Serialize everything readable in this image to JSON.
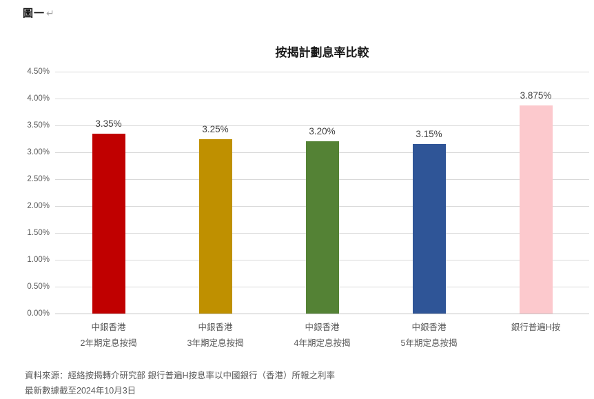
{
  "header": {
    "figure_label": "圖一",
    "return_mark": "↵"
  },
  "chart_data": {
    "type": "bar",
    "title": "按揭計劃息率比較",
    "categories": [
      {
        "line1": "中銀香港",
        "line2": "2年期定息按揭"
      },
      {
        "line1": "中銀香港",
        "line2": "3年期定息按揭"
      },
      {
        "line1": "中銀香港",
        "line2": "4年期定息按揭"
      },
      {
        "line1": "中銀香港",
        "line2": "5年期定息按揭"
      },
      {
        "line1": "銀行普遍H按",
        "line2": ""
      }
    ],
    "values": [
      3.35,
      3.25,
      3.2,
      3.15,
      3.875
    ],
    "value_labels": [
      "3.35%",
      "3.25%",
      "3.20%",
      "3.15%",
      "3.875%"
    ],
    "bar_colors": [
      "#C00000",
      "#BF9000",
      "#548235",
      "#2F5597",
      "#FCC9CD"
    ],
    "xlabel": "",
    "ylabel": "",
    "ylim": [
      0,
      4.5
    ],
    "ytick_step": 0.5,
    "ytick_labels": [
      "0.00%",
      "0.50%",
      "1.00%",
      "1.50%",
      "2.00%",
      "2.50%",
      "3.00%",
      "3.50%",
      "4.00%",
      "4.50%"
    ],
    "grid": true,
    "legend": "none",
    "grid_color": "#D9D9D9",
    "axis_color": "#C3C3C3",
    "tick_text_color": "#595959",
    "value_text_color": "#404040"
  },
  "source": {
    "line1": "資料來源：經絡按揭轉介研究部 銀行普遍H按息率以中國銀行（香港）所報之利率",
    "line2": "最新數據截至2024年10月3日"
  }
}
